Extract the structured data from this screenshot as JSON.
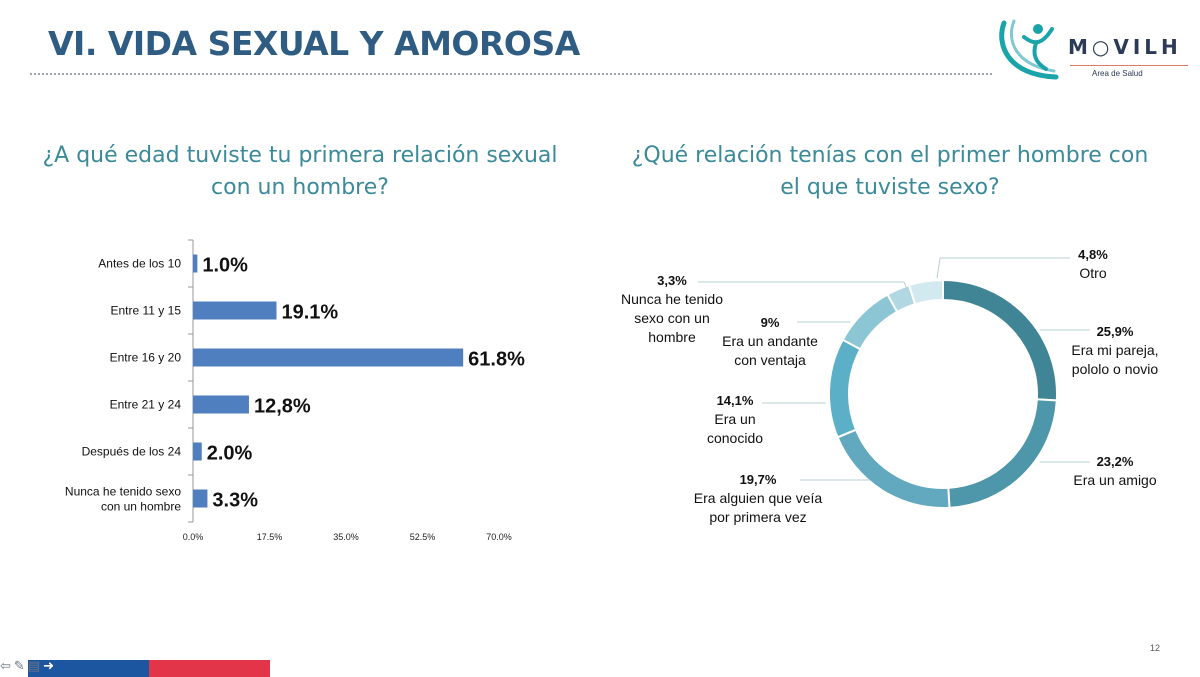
{
  "slide": {
    "title": "VI. VIDA SEXUAL Y AMOROSA",
    "page_number": "12"
  },
  "logo": {
    "name": "M○VILH",
    "subtitle": "Area de Salud",
    "colors": [
      "#1aa3a8",
      "#2b3a55",
      "#e07a66"
    ]
  },
  "questions": {
    "left": "¿A qué edad tuviste tu primera relación sexual con un hombre?",
    "right": "¿Qué relación tenías con el primer hombre con el que tuviste sexo?"
  },
  "nav": {
    "icons": [
      "back-arrow-icon",
      "pen-icon",
      "menu-icon",
      "forward-arrow-icon"
    ]
  },
  "chart_data": [
    {
      "type": "bar",
      "orientation": "horizontal",
      "categories": [
        "Antes de los 10",
        "Entre 11 y 15",
        "Entre 16 y 20",
        "Entre 21 y 24",
        "Después de los 24",
        "Nunca he tenido sexo con un hombre"
      ],
      "values": [
        1.0,
        19.1,
        61.8,
        12.8,
        2.0,
        3.3
      ],
      "data_labels": [
        "1.0%",
        "19.1%",
        "61.8%",
        "12,8%",
        "2.0%",
        "3.3%"
      ],
      "xticks": [
        0,
        17.5,
        35,
        52.5,
        70
      ],
      "xtick_labels": [
        "0.0%",
        "17.5%",
        "35.0%",
        "52.5%",
        "70.0%"
      ],
      "xlim": [
        0,
        70
      ],
      "bar_color": "#4f7fbe",
      "grid": false
    },
    {
      "type": "donut",
      "slices": [
        {
          "label": "Era mi pareja, pololo o novio",
          "value": 25.9,
          "pct_label": "25,9%",
          "color": "#3f8596"
        },
        {
          "label": "Era un amigo",
          "value": 23.2,
          "pct_label": "23,2%",
          "color": "#4e97ab"
        },
        {
          "label": "Era alguien que veía por primera vez",
          "value": 19.7,
          "pct_label": "19,7%",
          "color": "#62a9bf"
        },
        {
          "label": "Era un conocido",
          "value": 14.1,
          "pct_label": "14,1%",
          "color": "#5bb0c8"
        },
        {
          "label": "Era un andante con ventaja",
          "value": 9,
          "pct_label": "9%",
          "color": "#8cc6d5"
        },
        {
          "label": "Nunca he tenido sexo con un hombre",
          "value": 3.3,
          "pct_label": "3,3%",
          "color": "#b1d8e2"
        },
        {
          "label": "Otro",
          "value": 4.8,
          "pct_label": "4,8%",
          "color": "#d2e9ef"
        }
      ]
    }
  ]
}
